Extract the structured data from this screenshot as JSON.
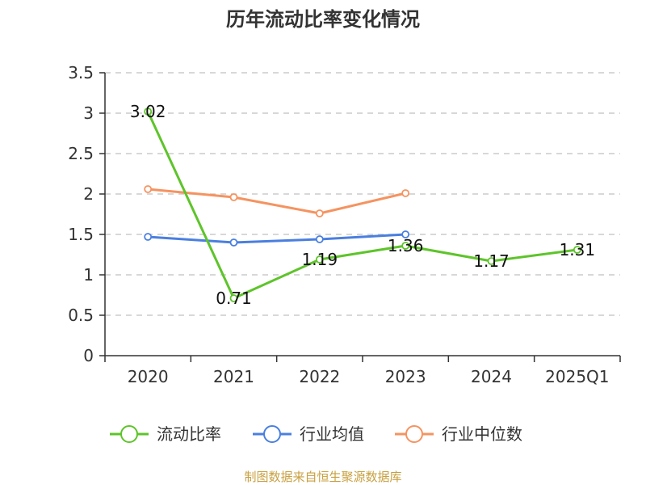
{
  "chart_data": {
    "type": "line",
    "title": "历年流动比率变化情况",
    "categories": [
      "2020",
      "2021",
      "2022",
      "2023",
      "2024",
      "2025Q1"
    ],
    "y_ticks": [
      "0",
      "0.5",
      "1",
      "1.5",
      "2",
      "2.5",
      "3",
      "3.5"
    ],
    "ylim": [
      0,
      3.5
    ],
    "grid": true,
    "legend_position": "bottom",
    "series": [
      {
        "name": "流动比率",
        "color": "#5ec42a",
        "values": [
          3.02,
          0.71,
          1.19,
          1.36,
          1.17,
          1.31
        ],
        "labels": [
          "3.02",
          "0.71",
          "1.19",
          "1.36",
          "1.17",
          "1.31"
        ]
      },
      {
        "name": "行业均值",
        "color": "#4a7fe0",
        "values": [
          1.47,
          1.4,
          1.44,
          1.5,
          null,
          null
        ]
      },
      {
        "name": "行业中位数",
        "color": "#f59360",
        "values": [
          2.06,
          1.96,
          1.76,
          2.01,
          null,
          null
        ]
      }
    ],
    "source": "制图数据来自恒生聚源数据库"
  }
}
